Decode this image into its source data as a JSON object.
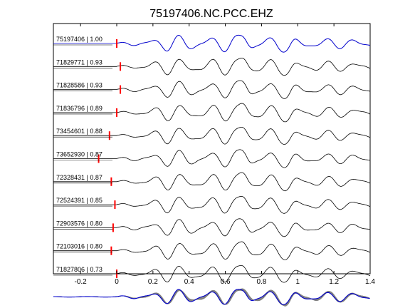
{
  "chart_data": {
    "type": "line",
    "title": "75197406.NC.PCC.EHZ",
    "xlabel": "",
    "ylabel": "",
    "xlim": [
      -0.35,
      1.4
    ],
    "x_ticks": [
      "-0.2",
      "0",
      "0.2",
      "0.4",
      "0.6",
      "0.8",
      "1",
      "1.2",
      "1.4"
    ],
    "grid": false,
    "legend": "none",
    "colors": {
      "reference": "#0000cc",
      "trace": "#000000",
      "pick": "#ff0000",
      "stack": "#808080"
    },
    "traces": [
      {
        "label": "75197406 | 1.00",
        "pick_time": 0.0,
        "reference": true
      },
      {
        "label": "71829771 | 0.93",
        "pick_time": 0.02
      },
      {
        "label": "71828586 | 0.93",
        "pick_time": 0.02
      },
      {
        "label": "71836796 | 0.89",
        "pick_time": 0.0
      },
      {
        "label": "73454601 | 0.88",
        "pick_time": -0.04
      },
      {
        "label": "73652930 | 0.87",
        "pick_time": -0.1
      },
      {
        "label": "72328431 | 0.87",
        "pick_time": -0.03
      },
      {
        "label": "72524391 | 0.85",
        "pick_time": -0.01
      },
      {
        "label": "72903576 | 0.80",
        "pick_time": -0.02
      },
      {
        "label": "72103016 | 0.80",
        "pick_time": -0.03
      },
      {
        "label": "71827806 | 0.73",
        "pick_time": 0.0
      }
    ],
    "stack_row": {
      "reference_overlay": true,
      "gray_trace_count": 10
    }
  }
}
